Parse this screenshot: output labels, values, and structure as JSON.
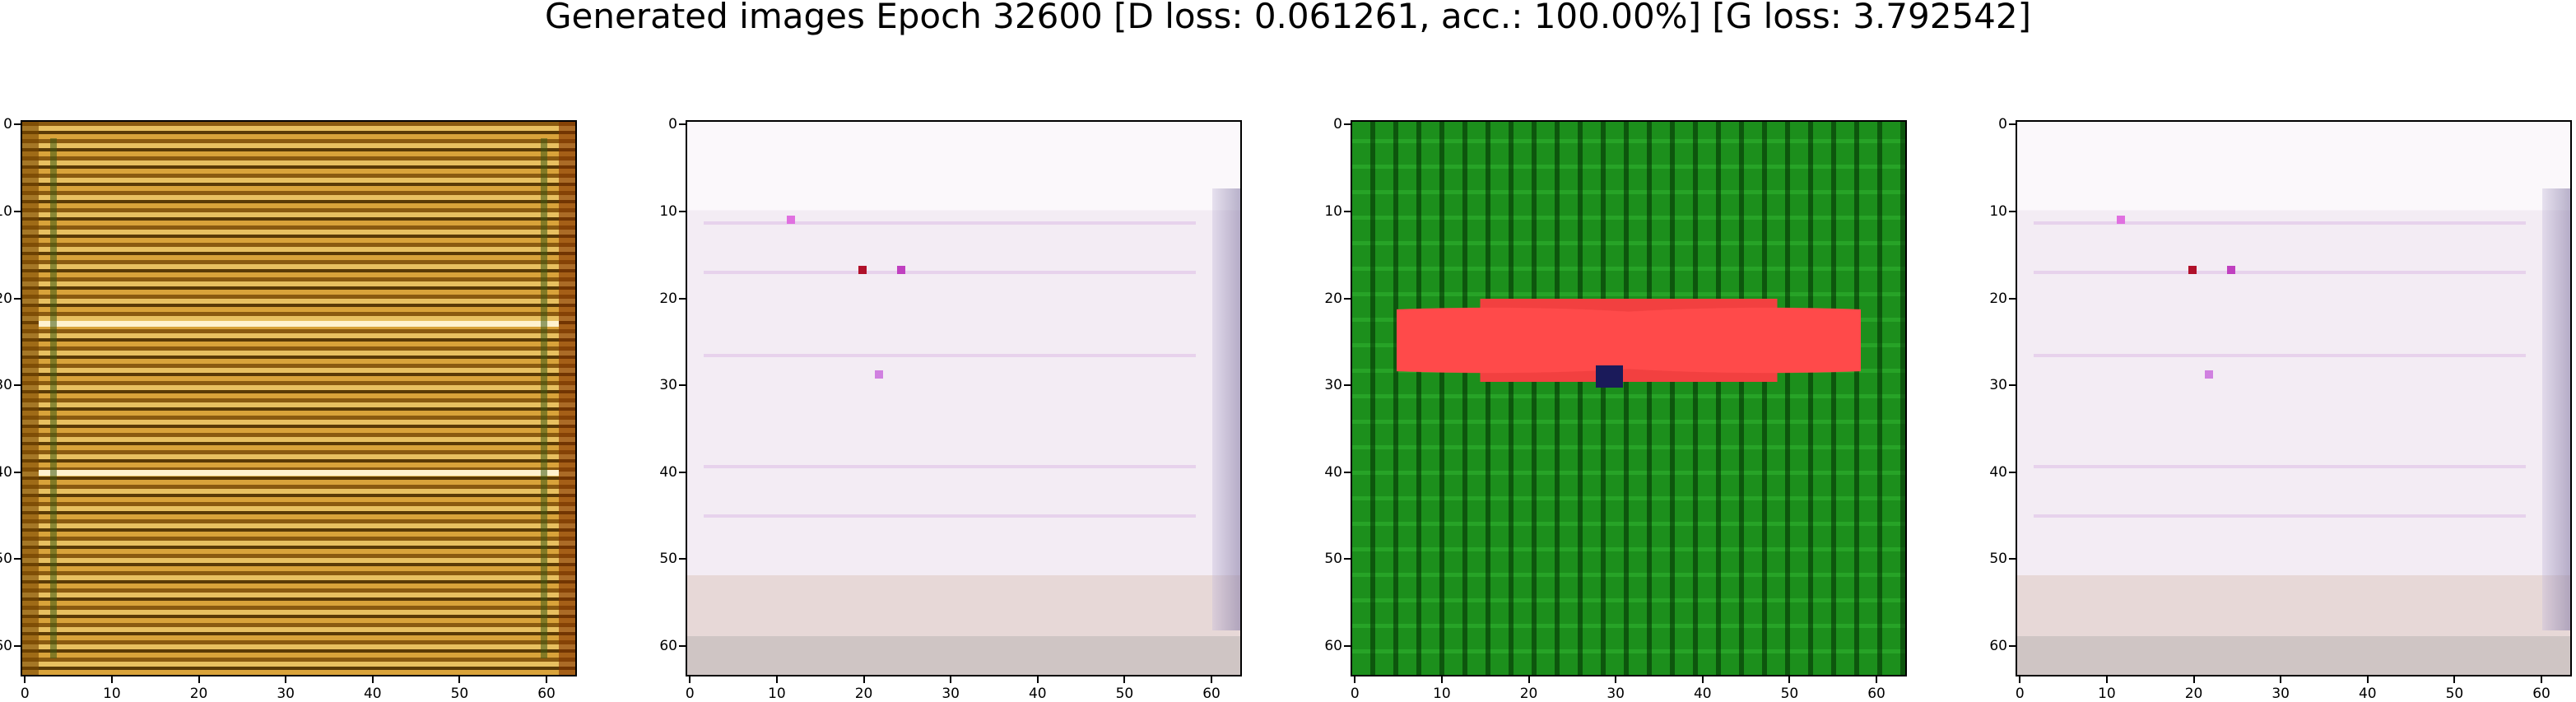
{
  "figure": {
    "title": "Generated images Epoch 32600 [D loss: 0.061261, acc.: 100.00%] [G loss: 3.792542]"
  },
  "axes": {
    "x_ticks": [
      "0",
      "10",
      "20",
      "30",
      "40",
      "50",
      "60"
    ],
    "y_ticks": [
      "0",
      "10",
      "20",
      "30",
      "40",
      "50",
      "60"
    ],
    "xlim": [
      0,
      64
    ],
    "ylim": [
      64,
      0
    ]
  },
  "panels": [
    {
      "name": "generated-image-1",
      "description_color": "#b98120"
    },
    {
      "name": "generated-image-2",
      "description_color": "#f5eef5"
    },
    {
      "name": "generated-image-3",
      "description_color": "#1c8f1c"
    },
    {
      "name": "generated-image-4",
      "description_color": "#f5eef5"
    }
  ]
}
